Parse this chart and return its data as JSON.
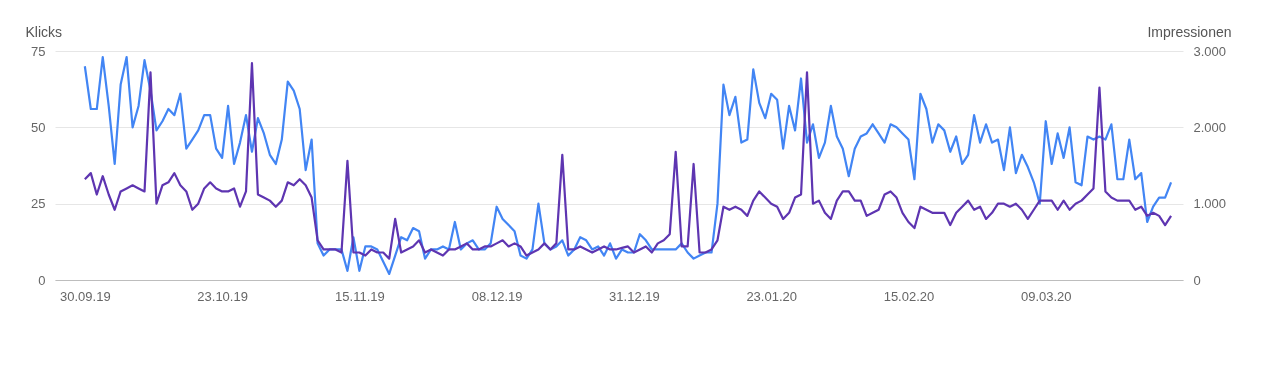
{
  "chart_data": {
    "type": "line",
    "ylabel": "Klicks",
    "y2label": "Impressionen",
    "x": [
      "2019-09-30",
      "2019-10-01",
      "2019-10-02",
      "2019-10-03",
      "2019-10-04",
      "2019-10-05",
      "2019-10-06",
      "2019-10-07",
      "2019-10-08",
      "2019-10-09",
      "2019-10-10",
      "2019-10-11",
      "2019-10-12",
      "2019-10-13",
      "2019-10-14",
      "2019-10-15",
      "2019-10-16",
      "2019-10-17",
      "2019-10-18",
      "2019-10-19",
      "2019-10-20",
      "2019-10-21",
      "2019-10-22",
      "2019-10-23",
      "2019-10-24",
      "2019-10-25",
      "2019-10-26",
      "2019-10-27",
      "2019-10-28",
      "2019-10-29",
      "2019-10-30",
      "2019-10-31",
      "2019-11-01",
      "2019-11-02",
      "2019-11-03",
      "2019-11-04",
      "2019-11-05",
      "2019-11-06",
      "2019-11-07",
      "2019-11-08",
      "2019-11-09",
      "2019-11-10",
      "2019-11-11",
      "2019-11-12",
      "2019-11-13",
      "2019-11-14",
      "2019-11-15",
      "2019-11-16",
      "2019-11-17",
      "2019-11-18",
      "2019-11-19",
      "2019-11-20",
      "2019-11-21",
      "2019-11-22",
      "2019-11-23",
      "2019-11-24",
      "2019-11-25",
      "2019-11-26",
      "2019-11-27",
      "2019-11-28",
      "2019-11-29",
      "2019-11-30",
      "2019-12-01",
      "2019-12-02",
      "2019-12-03",
      "2019-12-04",
      "2019-12-05",
      "2019-12-06",
      "2019-12-07",
      "2019-12-08",
      "2019-12-09",
      "2019-12-10",
      "2019-12-11",
      "2019-12-12",
      "2019-12-13",
      "2019-12-14",
      "2019-12-15",
      "2019-12-16",
      "2019-12-17",
      "2019-12-18",
      "2019-12-19",
      "2019-12-20",
      "2019-12-21",
      "2019-12-22",
      "2019-12-23",
      "2019-12-24",
      "2019-12-25",
      "2019-12-26",
      "2019-12-27",
      "2019-12-28",
      "2019-12-29",
      "2019-12-30",
      "2019-12-31",
      "2020-01-01",
      "2020-01-02",
      "2020-01-03",
      "2020-01-04",
      "2020-01-05",
      "2020-01-06",
      "2020-01-07",
      "2020-01-08",
      "2020-01-09",
      "2020-01-10",
      "2020-01-11",
      "2020-01-12",
      "2020-01-13",
      "2020-01-14",
      "2020-01-15",
      "2020-01-16",
      "2020-01-17",
      "2020-01-18",
      "2020-01-19",
      "2020-01-20",
      "2020-01-21",
      "2020-01-22",
      "2020-01-23",
      "2020-01-24",
      "2020-01-25",
      "2020-01-26",
      "2020-01-27",
      "2020-01-28",
      "2020-01-29",
      "2020-01-30",
      "2020-01-31",
      "2020-02-01",
      "2020-02-02",
      "2020-02-03",
      "2020-02-04",
      "2020-02-05",
      "2020-02-06",
      "2020-02-07",
      "2020-02-08",
      "2020-02-09",
      "2020-02-10",
      "2020-02-11",
      "2020-02-12",
      "2020-02-13",
      "2020-02-14",
      "2020-02-15",
      "2020-02-16",
      "2020-02-17",
      "2020-02-18",
      "2020-02-19",
      "2020-02-20",
      "2020-02-21",
      "2020-02-22",
      "2020-02-23",
      "2020-02-24",
      "2020-02-25",
      "2020-02-26",
      "2020-02-27",
      "2020-02-28",
      "2020-02-29",
      "2020-03-01",
      "2020-03-02",
      "2020-03-03",
      "2020-03-04",
      "2020-03-05",
      "2020-03-06",
      "2020-03-07",
      "2020-03-08",
      "2020-03-09",
      "2020-03-10",
      "2020-03-11",
      "2020-03-12",
      "2020-03-13",
      "2020-03-14",
      "2020-03-15",
      "2020-03-16",
      "2020-03-17",
      "2020-03-18",
      "2020-03-19",
      "2020-03-20",
      "2020-03-21",
      "2020-03-22",
      "2020-03-23",
      "2020-03-24",
      "2020-03-25",
      "2020-03-26",
      "2020-03-27",
      "2020-03-28",
      "2020-03-29",
      "2020-03-30"
    ],
    "series": [
      {
        "color": "#4285f4",
        "values": [
          70,
          56,
          56,
          73,
          57,
          38,
          64,
          73,
          50,
          57,
          72,
          62,
          49,
          52,
          56,
          54,
          61,
          43,
          46,
          49,
          54,
          54,
          43,
          40,
          57,
          38,
          45,
          54,
          42,
          53,
          48,
          41,
          38,
          46,
          65,
          62,
          56,
          36,
          46,
          12,
          8,
          10,
          10,
          10,
          3,
          14,
          3,
          11,
          11,
          10,
          6,
          2,
          8,
          14,
          13,
          17,
          16,
          7,
          10,
          10,
          11,
          10,
          19,
          10,
          12,
          13,
          10,
          10,
          12,
          24,
          20,
          18,
          16,
          8,
          7,
          10,
          25,
          12,
          10,
          11,
          13,
          8,
          10,
          14,
          13,
          10,
          11,
          8,
          12,
          7,
          10,
          9,
          9,
          15,
          13,
          10,
          10,
          10,
          10,
          10,
          12,
          9,
          7,
          8,
          9,
          9,
          25,
          64,
          54,
          60,
          45,
          46,
          69,
          58,
          53,
          61,
          59,
          43,
          57,
          49,
          66,
          45,
          51,
          40,
          45,
          57,
          47,
          43,
          34,
          43,
          47,
          48,
          51,
          48,
          45,
          51,
          50,
          48,
          46,
          33,
          61,
          56,
          45,
          51,
          49,
          42,
          47,
          38,
          41,
          54,
          45,
          51,
          45,
          46,
          36,
          50,
          35,
          41,
          37,
          32,
          25,
          52,
          38,
          48,
          40,
          50,
          32,
          31,
          47,
          46,
          47,
          46,
          51,
          33,
          33,
          46,
          33,
          35,
          19,
          24,
          27,
          27,
          32
        ]
      },
      {
        "color": "#5e35b1",
        "axis": "y2",
        "values": [
          1320,
          1400,
          1120,
          1360,
          1120,
          920,
          1160,
          1200,
          1240,
          1200,
          1160,
          2720,
          1000,
          1240,
          1280,
          1400,
          1240,
          1160,
          920,
          1000,
          1200,
          1280,
          1200,
          1160,
          1160,
          1200,
          960,
          1160,
          2840,
          1120,
          1080,
          1040,
          960,
          1040,
          1280,
          1240,
          1320,
          1240,
          1080,
          520,
          400,
          400,
          400,
          360,
          1560,
          360,
          360,
          320,
          400,
          360,
          360,
          280,
          800,
          360,
          400,
          440,
          520,
          360,
          400,
          360,
          320,
          400,
          400,
          440,
          480,
          400,
          400,
          440,
          440,
          480,
          520,
          440,
          480,
          440,
          320,
          360,
          400,
          480,
          400,
          480,
          1640,
          400,
          400,
          440,
          400,
          360,
          400,
          440,
          400,
          400,
          420,
          440,
          360,
          400,
          440,
          360,
          480,
          520,
          600,
          1680,
          440,
          440,
          1520,
          360,
          360,
          400,
          520,
          960,
          920,
          960,
          920,
          840,
          1040,
          1160,
          1080,
          1000,
          960,
          800,
          880,
          1080,
          1120,
          2720,
          1000,
          1040,
          880,
          800,
          1040,
          1160,
          1160,
          1040,
          1040,
          840,
          880,
          920,
          1120,
          1160,
          1080,
          880,
          760,
          680,
          960,
          920,
          880,
          880,
          880,
          720,
          880,
          960,
          1040,
          920,
          960,
          800,
          880,
          1000,
          1000,
          960,
          1000,
          920,
          800,
          920,
          1040,
          1040,
          1040,
          920,
          1040,
          920,
          1000,
          1040,
          1120,
          1200,
          2520,
          1160,
          1080,
          1040,
          1040,
          1040,
          920,
          960,
          840,
          880,
          840,
          720,
          840
        ]
      }
    ],
    "xlim": [
      "2019-09-25",
      "2020-04-01"
    ],
    "xticks": [
      {
        "value": "2019-09-30",
        "label": "30.09.19"
      },
      {
        "value": "2019-10-23",
        "label": "23.10.19"
      },
      {
        "value": "2019-11-15",
        "label": "15.11.19"
      },
      {
        "value": "2019-12-08",
        "label": "08.12.19"
      },
      {
        "value": "2019-12-31",
        "label": "31.12.19"
      },
      {
        "value": "2020-01-23",
        "label": "23.01.20"
      },
      {
        "value": "2020-02-15",
        "label": "15.02.20"
      },
      {
        "value": "2020-03-09",
        "label": "09.03.20"
      }
    ],
    "ylim": [
      0,
      75
    ],
    "yticks": [
      0,
      25,
      50,
      75
    ],
    "y2lim": [
      0,
      3000
    ],
    "y2ticks": [
      0,
      {
        "value": 1000,
        "label": "1.000"
      },
      {
        "value": 2000,
        "label": "2.000"
      },
      {
        "value": 3000,
        "label": "3.000"
      }
    ],
    "grid": "y",
    "marker": "none",
    "line_style": "solid"
  }
}
